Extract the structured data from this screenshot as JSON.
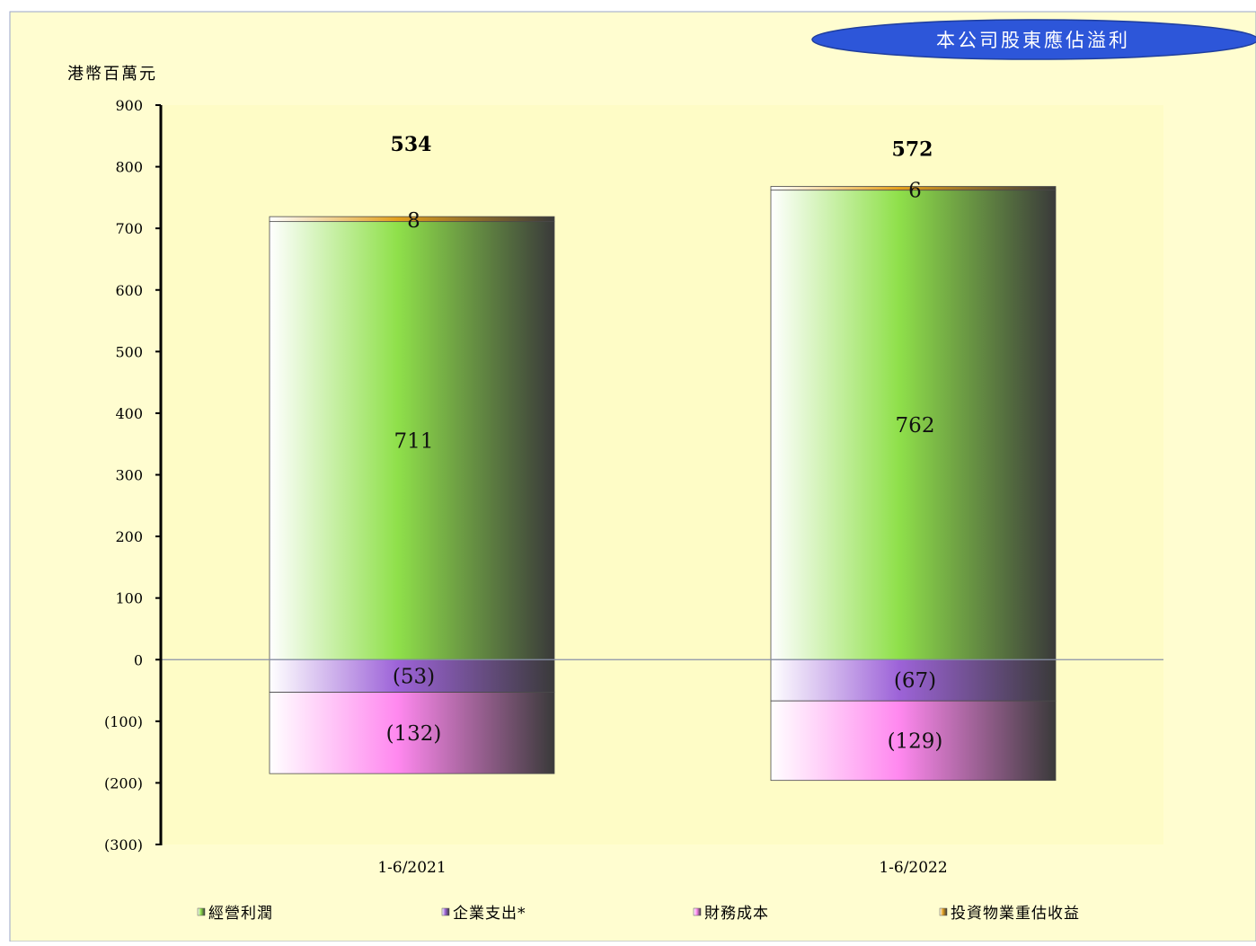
{
  "colors": {
    "page_bg": "#fffdd0",
    "plot_bg": "#fefcc6",
    "border": "#9aa5c9",
    "badge_fill": "#2d56d9",
    "badge_stroke": "#1f3e9e",
    "badge_text": "#ffffff",
    "operating_profit": "#8fe04a",
    "corporate_expenses": "#9d63d8",
    "finance_costs": "#ff88ef",
    "revaluation_gain": "#e3a01c",
    "axis": "#000000",
    "zero_line": "#8890a8"
  },
  "chart_data": {
    "type": "bar",
    "stacked": true,
    "title": "本公司股東應佔溢利",
    "ylabel": "港幣百萬元",
    "xlabel": "",
    "ylim": [
      -300,
      900
    ],
    "yticks": [
      900,
      800,
      700,
      600,
      500,
      400,
      300,
      200,
      100,
      0,
      -100,
      -200,
      -300
    ],
    "ytick_labels": [
      "900",
      "800",
      "700",
      "600",
      "500",
      "400",
      "300",
      "200",
      "100",
      "0",
      "(100)",
      "(200)",
      "(300)"
    ],
    "categories": [
      "1-6/2021",
      "1-6/2022"
    ],
    "totals": [
      534,
      572
    ],
    "total_labels": [
      "534",
      "572"
    ],
    "series": [
      {
        "key": "operating_profit",
        "name": "經營利潤",
        "values": [
          711,
          762
        ],
        "labels": [
          "711",
          "762"
        ]
      },
      {
        "key": "corporate_expenses",
        "name": "企業支出*",
        "values": [
          -53,
          -67
        ],
        "labels": [
          "(53)",
          "(67)"
        ]
      },
      {
        "key": "finance_costs",
        "name": "財務成本",
        "values": [
          -132,
          -129
        ],
        "labels": [
          "(132)",
          "(129)"
        ]
      },
      {
        "key": "revaluation_gain",
        "name": "投資物業重估收益",
        "values": [
          8,
          6
        ],
        "labels": [
          "8",
          "6"
        ]
      }
    ],
    "legend_position": "bottom",
    "grid": false
  }
}
